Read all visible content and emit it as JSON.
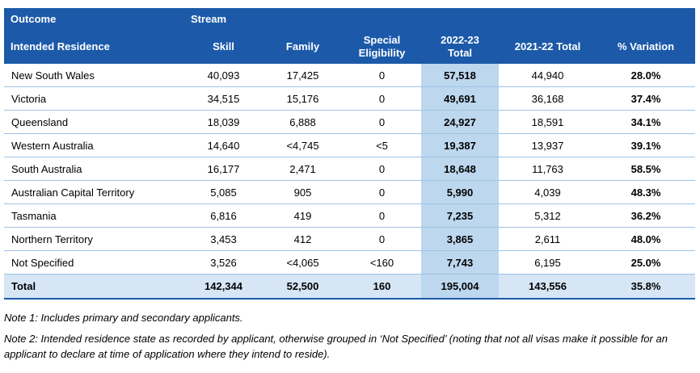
{
  "table": {
    "group_header": [
      "Outcome",
      "Stream"
    ],
    "columns": [
      "Intended Residence",
      "Skill",
      "Family",
      "Special Eligibility",
      "2022-23 Total",
      "2021-22 Total",
      "% Variation"
    ],
    "rows": [
      [
        "New South Wales",
        "40,093",
        "17,425",
        "0",
        "57,518",
        "44,940",
        "28.0%"
      ],
      [
        "Victoria",
        "34,515",
        "15,176",
        "0",
        "49,691",
        "36,168",
        "37.4%"
      ],
      [
        "Queensland",
        "18,039",
        "6,888",
        "0",
        "24,927",
        "18,591",
        "34.1%"
      ],
      [
        "Western Australia",
        "14,640",
        "<4,745",
        "<5",
        "19,387",
        "13,937",
        "39.1%"
      ],
      [
        "South Australia",
        "16,177",
        "2,471",
        "0",
        "18,648",
        "11,763",
        "58.5%"
      ],
      [
        "Australian Capital Territory",
        "5,085",
        "905",
        "0",
        "5,990",
        "4,039",
        "48.3%"
      ],
      [
        "Tasmania",
        "6,816",
        "419",
        "0",
        "7,235",
        "5,312",
        "36.2%"
      ],
      [
        "Northern Territory",
        "3,453",
        "412",
        "0",
        "3,865",
        "2,611",
        "48.0%"
      ],
      [
        "Not Specified",
        "3,526",
        "<4,065",
        "<160",
        "7,743",
        "6,195",
        "25.0%"
      ]
    ],
    "total": [
      "Total",
      "142,344",
      "52,500",
      "160",
      "195,004",
      "143,556",
      "35.8%"
    ]
  },
  "notes": [
    "Note 1: Includes primary and secondary applicants.",
    "Note 2: Intended residence state as recorded by applicant, otherwise grouped in ‘Not Specified’ (noting that not all visas make it possible for an applicant to declare at time of application where they intend to reside)."
  ]
}
